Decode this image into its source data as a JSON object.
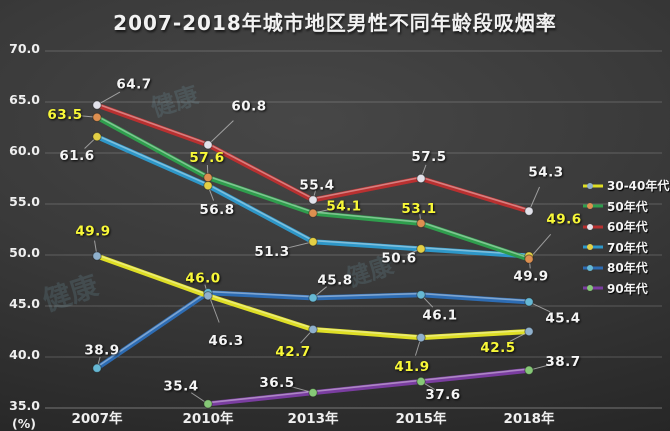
{
  "watermark": "健康",
  "chart_data": {
    "type": "line",
    "title": "2007-2018年城市地区男性不同年龄段吸烟率",
    "unit_label": "(%)",
    "categories": [
      "2007年",
      "2010年",
      "2013年",
      "2015年",
      "2018年"
    ],
    "ylim": [
      35,
      70
    ],
    "yticks": [
      "70.0",
      "65.0",
      "60.0",
      "55.0",
      "50.0",
      "45.0",
      "40.0",
      "35.0"
    ],
    "grid": true,
    "legend_position": "right",
    "background": "#3a3a3a",
    "series": [
      {
        "name": "30-40年代",
        "color": "#dede25",
        "marker_color": "#8fb0cc",
        "label_color": "#f8f838",
        "values": [
          49.9,
          46.0,
          42.7,
          41.9,
          42.5
        ]
      },
      {
        "name": "50年代",
        "color": "#2f9e4d",
        "marker_color": "#dd8f50",
        "label_color": "#f8f838",
        "values": [
          63.5,
          57.6,
          54.1,
          53.1,
          49.6
        ]
      },
      {
        "name": "60年代",
        "color": "#b93030",
        "marker_color": "#e2e2ea",
        "label_color": "#f5f5f5",
        "values": [
          64.7,
          60.8,
          55.4,
          57.5,
          54.3
        ]
      },
      {
        "name": "70年代",
        "color": "#2e97c8",
        "marker_color": "#e3cf45",
        "label_color": "#f5f5f5",
        "values": [
          61.6,
          56.8,
          51.3,
          50.6,
          49.9
        ]
      },
      {
        "name": "80年代",
        "color": "#2d6cb3",
        "marker_color": "#66b8d4",
        "label_color": "#f5f5f5",
        "values": [
          38.9,
          46.3,
          45.8,
          46.1,
          45.4
        ]
      },
      {
        "name": "90年代",
        "color": "#7a3da0",
        "marker_color": "#86c877",
        "label_color": "#f5f5f5",
        "values": [
          null,
          35.4,
          36.5,
          37.6,
          38.7
        ]
      }
    ]
  }
}
